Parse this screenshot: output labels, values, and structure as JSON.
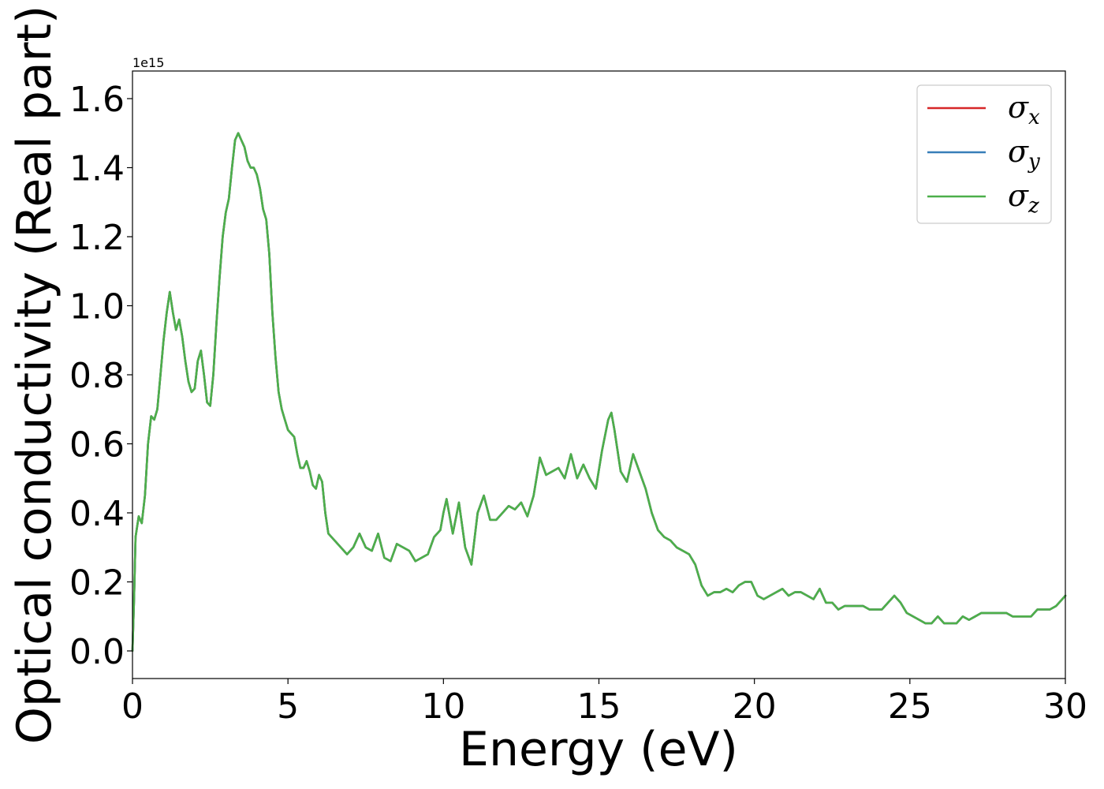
{
  "chart_data": {
    "type": "line",
    "title": "",
    "xlabel": "Energy (eV)",
    "ylabel": "Optical conductivity (Real part)",
    "y_offset_label": "1e15",
    "xlim": [
      0,
      30
    ],
    "ylim": [
      -0.08,
      1.68
    ],
    "xticks": [
      0,
      5,
      10,
      15,
      20,
      25,
      30
    ],
    "xtick_labels": [
      "0",
      "5",
      "10",
      "15",
      "20",
      "25",
      "30"
    ],
    "yticks": [
      0.0,
      0.2,
      0.4,
      0.6,
      0.8,
      1.0,
      1.2,
      1.4,
      1.6
    ],
    "ytick_labels": [
      "0.0",
      "0.2",
      "0.4",
      "0.6",
      "0.8",
      "1.0",
      "1.2",
      "1.4",
      "1.6"
    ],
    "grid": false,
    "legend_position": "top-right",
    "x": [
      0,
      0.05,
      0.1,
      0.2,
      0.3,
      0.4,
      0.5,
      0.6,
      0.7,
      0.8,
      0.9,
      1.0,
      1.1,
      1.2,
      1.3,
      1.4,
      1.5,
      1.6,
      1.7,
      1.8,
      1.9,
      2.0,
      2.1,
      2.2,
      2.3,
      2.4,
      2.5,
      2.6,
      2.7,
      2.8,
      2.9,
      3.0,
      3.1,
      3.2,
      3.3,
      3.4,
      3.5,
      3.6,
      3.7,
      3.8,
      3.9,
      4.0,
      4.1,
      4.2,
      4.3,
      4.4,
      4.5,
      4.6,
      4.7,
      4.8,
      4.9,
      5.0,
      5.1,
      5.2,
      5.3,
      5.4,
      5.5,
      5.6,
      5.7,
      5.8,
      5.9,
      6.0,
      6.1,
      6.2,
      6.3,
      6.5,
      6.7,
      6.9,
      7.1,
      7.3,
      7.5,
      7.7,
      7.9,
      8.1,
      8.3,
      8.5,
      8.7,
      8.9,
      9.1,
      9.3,
      9.5,
      9.7,
      9.9,
      10.0,
      10.1,
      10.3,
      10.5,
      10.7,
      10.9,
      11.1,
      11.3,
      11.5,
      11.7,
      11.9,
      12.1,
      12.3,
      12.5,
      12.7,
      12.9,
      13.1,
      13.3,
      13.5,
      13.7,
      13.9,
      14.1,
      14.3,
      14.5,
      14.7,
      14.9,
      15.1,
      15.3,
      15.4,
      15.5,
      15.7,
      15.9,
      16.1,
      16.3,
      16.5,
      16.7,
      16.9,
      17.1,
      17.3,
      17.5,
      17.7,
      17.9,
      18.1,
      18.3,
      18.5,
      18.7,
      18.9,
      19.1,
      19.3,
      19.5,
      19.7,
      19.9,
      20.1,
      20.3,
      20.5,
      20.7,
      20.9,
      21.1,
      21.3,
      21.5,
      21.7,
      21.9,
      22.1,
      22.3,
      22.5,
      22.7,
      22.9,
      23.1,
      23.3,
      23.5,
      23.7,
      23.9,
      24.1,
      24.3,
      24.5,
      24.7,
      24.9,
      25.1,
      25.3,
      25.5,
      25.7,
      25.9,
      26.1,
      26.3,
      26.5,
      26.7,
      26.9,
      27.1,
      27.3,
      27.5,
      27.7,
      27.9,
      28.1,
      28.3,
      28.5,
      28.7,
      28.9,
      29.1,
      29.3,
      29.5,
      29.7,
      29.9,
      30.0
    ],
    "series": [
      {
        "name": "σx",
        "symbol": "σ",
        "subscript": "x",
        "color": "#d62728",
        "values": [
          0.0,
          0.15,
          0.33,
          0.39,
          0.37,
          0.45,
          0.6,
          0.68,
          0.67,
          0.7,
          0.8,
          0.9,
          0.98,
          1.04,
          0.98,
          0.93,
          0.96,
          0.91,
          0.84,
          0.78,
          0.75,
          0.76,
          0.84,
          0.87,
          0.8,
          0.72,
          0.71,
          0.8,
          0.95,
          1.08,
          1.2,
          1.27,
          1.31,
          1.4,
          1.48,
          1.5,
          1.48,
          1.46,
          1.42,
          1.4,
          1.4,
          1.38,
          1.34,
          1.28,
          1.25,
          1.15,
          0.98,
          0.85,
          0.75,
          0.7,
          0.67,
          0.64,
          0.63,
          0.62,
          0.57,
          0.53,
          0.53,
          0.55,
          0.52,
          0.48,
          0.47,
          0.51,
          0.49,
          0.4,
          0.34,
          0.32,
          0.3,
          0.28,
          0.3,
          0.34,
          0.3,
          0.29,
          0.34,
          0.27,
          0.26,
          0.31,
          0.3,
          0.29,
          0.26,
          0.27,
          0.28,
          0.33,
          0.35,
          0.4,
          0.44,
          0.34,
          0.43,
          0.3,
          0.25,
          0.4,
          0.45,
          0.38,
          0.38,
          0.4,
          0.42,
          0.41,
          0.43,
          0.39,
          0.45,
          0.56,
          0.51,
          0.52,
          0.53,
          0.5,
          0.57,
          0.5,
          0.54,
          0.5,
          0.47,
          0.58,
          0.67,
          0.69,
          0.64,
          0.52,
          0.49,
          0.57,
          0.52,
          0.47,
          0.4,
          0.35,
          0.33,
          0.32,
          0.3,
          0.29,
          0.28,
          0.25,
          0.19,
          0.16,
          0.17,
          0.17,
          0.18,
          0.17,
          0.19,
          0.2,
          0.2,
          0.16,
          0.15,
          0.16,
          0.17,
          0.18,
          0.16,
          0.17,
          0.17,
          0.16,
          0.15,
          0.18,
          0.14,
          0.14,
          0.12,
          0.13,
          0.13,
          0.13,
          0.13,
          0.12,
          0.12,
          0.12,
          0.14,
          0.16,
          0.14,
          0.11,
          0.1,
          0.09,
          0.08,
          0.08,
          0.1,
          0.08,
          0.08,
          0.08,
          0.1,
          0.09,
          0.1,
          0.11,
          0.11,
          0.11,
          0.11,
          0.11,
          0.1,
          0.1,
          0.1,
          0.1,
          0.12,
          0.12,
          0.12,
          0.13,
          0.15,
          0.16
        ]
      },
      {
        "name": "σy",
        "symbol": "σ",
        "subscript": "y",
        "color": "#377eb8",
        "values": [
          0.0,
          0.15,
          0.33,
          0.39,
          0.37,
          0.45,
          0.6,
          0.68,
          0.67,
          0.7,
          0.8,
          0.9,
          0.98,
          1.04,
          0.98,
          0.93,
          0.96,
          0.91,
          0.84,
          0.78,
          0.75,
          0.76,
          0.84,
          0.87,
          0.8,
          0.72,
          0.71,
          0.8,
          0.95,
          1.08,
          1.2,
          1.27,
          1.31,
          1.4,
          1.48,
          1.5,
          1.48,
          1.46,
          1.42,
          1.4,
          1.4,
          1.38,
          1.34,
          1.28,
          1.25,
          1.15,
          0.98,
          0.85,
          0.75,
          0.7,
          0.67,
          0.64,
          0.63,
          0.62,
          0.57,
          0.53,
          0.53,
          0.55,
          0.52,
          0.48,
          0.47,
          0.51,
          0.49,
          0.4,
          0.34,
          0.32,
          0.3,
          0.28,
          0.3,
          0.34,
          0.3,
          0.29,
          0.34,
          0.27,
          0.26,
          0.31,
          0.3,
          0.29,
          0.26,
          0.27,
          0.28,
          0.33,
          0.35,
          0.4,
          0.44,
          0.34,
          0.43,
          0.3,
          0.25,
          0.4,
          0.45,
          0.38,
          0.38,
          0.4,
          0.42,
          0.41,
          0.43,
          0.39,
          0.45,
          0.56,
          0.51,
          0.52,
          0.53,
          0.5,
          0.57,
          0.5,
          0.54,
          0.5,
          0.47,
          0.58,
          0.67,
          0.69,
          0.64,
          0.52,
          0.49,
          0.57,
          0.52,
          0.47,
          0.4,
          0.35,
          0.33,
          0.32,
          0.3,
          0.29,
          0.28,
          0.25,
          0.19,
          0.16,
          0.17,
          0.17,
          0.18,
          0.17,
          0.19,
          0.2,
          0.2,
          0.16,
          0.15,
          0.16,
          0.17,
          0.18,
          0.16,
          0.17,
          0.17,
          0.16,
          0.15,
          0.18,
          0.14,
          0.14,
          0.12,
          0.13,
          0.13,
          0.13,
          0.13,
          0.12,
          0.12,
          0.12,
          0.14,
          0.16,
          0.14,
          0.11,
          0.1,
          0.09,
          0.08,
          0.08,
          0.1,
          0.08,
          0.08,
          0.08,
          0.1,
          0.09,
          0.1,
          0.11,
          0.11,
          0.11,
          0.11,
          0.11,
          0.1,
          0.1,
          0.1,
          0.1,
          0.12,
          0.12,
          0.12,
          0.13,
          0.15,
          0.16
        ]
      },
      {
        "name": "σz",
        "symbol": "σ",
        "subscript": "z",
        "color": "#4daf4a",
        "values": [
          0.0,
          0.15,
          0.33,
          0.39,
          0.37,
          0.45,
          0.6,
          0.68,
          0.67,
          0.7,
          0.8,
          0.9,
          0.98,
          1.04,
          0.98,
          0.93,
          0.96,
          0.91,
          0.84,
          0.78,
          0.75,
          0.76,
          0.84,
          0.87,
          0.8,
          0.72,
          0.71,
          0.8,
          0.95,
          1.08,
          1.2,
          1.27,
          1.31,
          1.4,
          1.48,
          1.5,
          1.48,
          1.46,
          1.42,
          1.4,
          1.4,
          1.38,
          1.34,
          1.28,
          1.25,
          1.15,
          0.98,
          0.85,
          0.75,
          0.7,
          0.67,
          0.64,
          0.63,
          0.62,
          0.57,
          0.53,
          0.53,
          0.55,
          0.52,
          0.48,
          0.47,
          0.51,
          0.49,
          0.4,
          0.34,
          0.32,
          0.3,
          0.28,
          0.3,
          0.34,
          0.3,
          0.29,
          0.34,
          0.27,
          0.26,
          0.31,
          0.3,
          0.29,
          0.26,
          0.27,
          0.28,
          0.33,
          0.35,
          0.4,
          0.44,
          0.34,
          0.43,
          0.3,
          0.25,
          0.4,
          0.45,
          0.38,
          0.38,
          0.4,
          0.42,
          0.41,
          0.43,
          0.39,
          0.45,
          0.56,
          0.51,
          0.52,
          0.53,
          0.5,
          0.57,
          0.5,
          0.54,
          0.5,
          0.47,
          0.58,
          0.67,
          0.69,
          0.64,
          0.52,
          0.49,
          0.57,
          0.52,
          0.47,
          0.4,
          0.35,
          0.33,
          0.32,
          0.3,
          0.29,
          0.28,
          0.25,
          0.19,
          0.16,
          0.17,
          0.17,
          0.18,
          0.17,
          0.19,
          0.2,
          0.2,
          0.16,
          0.15,
          0.16,
          0.17,
          0.18,
          0.16,
          0.17,
          0.17,
          0.16,
          0.15,
          0.18,
          0.14,
          0.14,
          0.12,
          0.13,
          0.13,
          0.13,
          0.13,
          0.12,
          0.12,
          0.12,
          0.14,
          0.16,
          0.14,
          0.11,
          0.1,
          0.09,
          0.08,
          0.08,
          0.1,
          0.08,
          0.08,
          0.08,
          0.1,
          0.09,
          0.1,
          0.11,
          0.11,
          0.11,
          0.11,
          0.11,
          0.1,
          0.1,
          0.1,
          0.1,
          0.12,
          0.12,
          0.12,
          0.13,
          0.15,
          0.16
        ]
      }
    ]
  }
}
